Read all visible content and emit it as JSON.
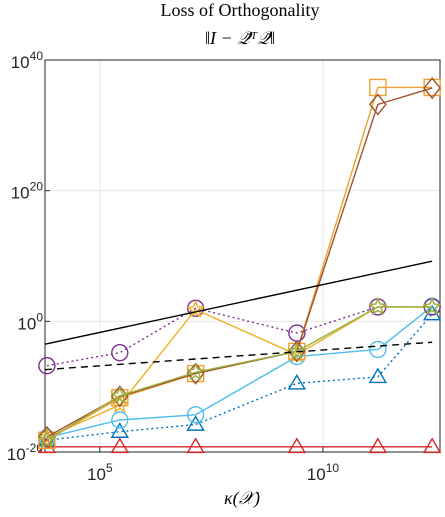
{
  "chart_data": {
    "type": "line",
    "title": "Loss of Orthogonality",
    "subtitle": "‖I − 𝒬̄ᵀ𝒬̄‖",
    "x_label": "κ(𝒳)",
    "x": [
      6500,
      280000,
      14000000,
      2600000000,
      170000000000,
      2800000000000
    ],
    "xlim": [
      5900,
      4200000000000
    ],
    "ylim": [
      1e-20,
      1e+40
    ],
    "xticks": [
      {
        "value": 100000,
        "label": "10",
        "exponent": "5"
      },
      {
        "value": 10000000000,
        "label": "10",
        "exponent": "10"
      }
    ],
    "yticks": [
      {
        "value": 1e-20,
        "label": "10",
        "exponent": "-20"
      },
      {
        "value": 1,
        "label": "10",
        "exponent": "0"
      },
      {
        "value": 1e+20,
        "label": "10",
        "exponent": "20"
      },
      {
        "value": 1e+40,
        "label": "10",
        "exponent": "40"
      }
    ],
    "log_x": true,
    "log_y": true,
    "grid": true,
    "series": [
      {
        "color": "#0072BD",
        "marker": "triangle",
        "line": "dotted",
        "values": [
          6.3e-19,
          1.3e-17,
          1.6e-16,
          3.2e-10,
          3.2e-09,
          13
        ]
      },
      {
        "color": "#4DBEEE",
        "marker": "circle",
        "line": "solid",
        "values": [
          1.6e-18,
          7.9e-16,
          5e-15,
          4e-06,
          5e-05,
          200
        ]
      },
      {
        "color": "#D62728",
        "marker": "triangle",
        "line": "solid",
        "values": [
          6.3e-20,
          6.3e-20,
          6.3e-20,
          6.3e-20,
          6.3e-20,
          6.3e-20
        ]
      },
      {
        "color": "#7E2F8E",
        "marker": "circle",
        "line": "dotted",
        "values": [
          1.6e-07,
          1.6e-05,
          100,
          0.016,
          160,
          160
        ]
      },
      {
        "color": "#EDB120",
        "marker": "star",
        "line": "solid",
        "values": [
          1.6e-18,
          1.6e-13,
          63,
          7.9e-06,
          160,
          160
        ]
      },
      {
        "color": "#F0A030",
        "marker": "square",
        "line": "solid",
        "values": [
          6.3e-19,
          2e-12,
          1e-08,
          2.5e-05,
          6.3e+35,
          6.3e+35
        ]
      },
      {
        "color": "#A0522D",
        "marker": "diamond",
        "line": "solid",
        "values": [
          2e-18,
          3.2e-12,
          1e-08,
          2.5e-05,
          1.6e+33,
          5e+35
        ]
      },
      {
        "color": "#9AB040",
        "marker": "star",
        "line": "solid",
        "values": [
          6.3e-19,
          4e-12,
          1.6e-08,
          2.5e-05,
          160,
          160
        ]
      },
      {
        "color": "#000000",
        "marker": "none",
        "line": "solid",
        "x": [
          5900,
          2800000000000
        ],
        "values": [
          0.00032,
          1600000000
        ]
      },
      {
        "color": "#000000",
        "marker": "none",
        "line": "dashed",
        "x": [
          5900,
          2800000000000
        ],
        "values": [
          4e-08,
          0.00063
        ]
      }
    ]
  }
}
